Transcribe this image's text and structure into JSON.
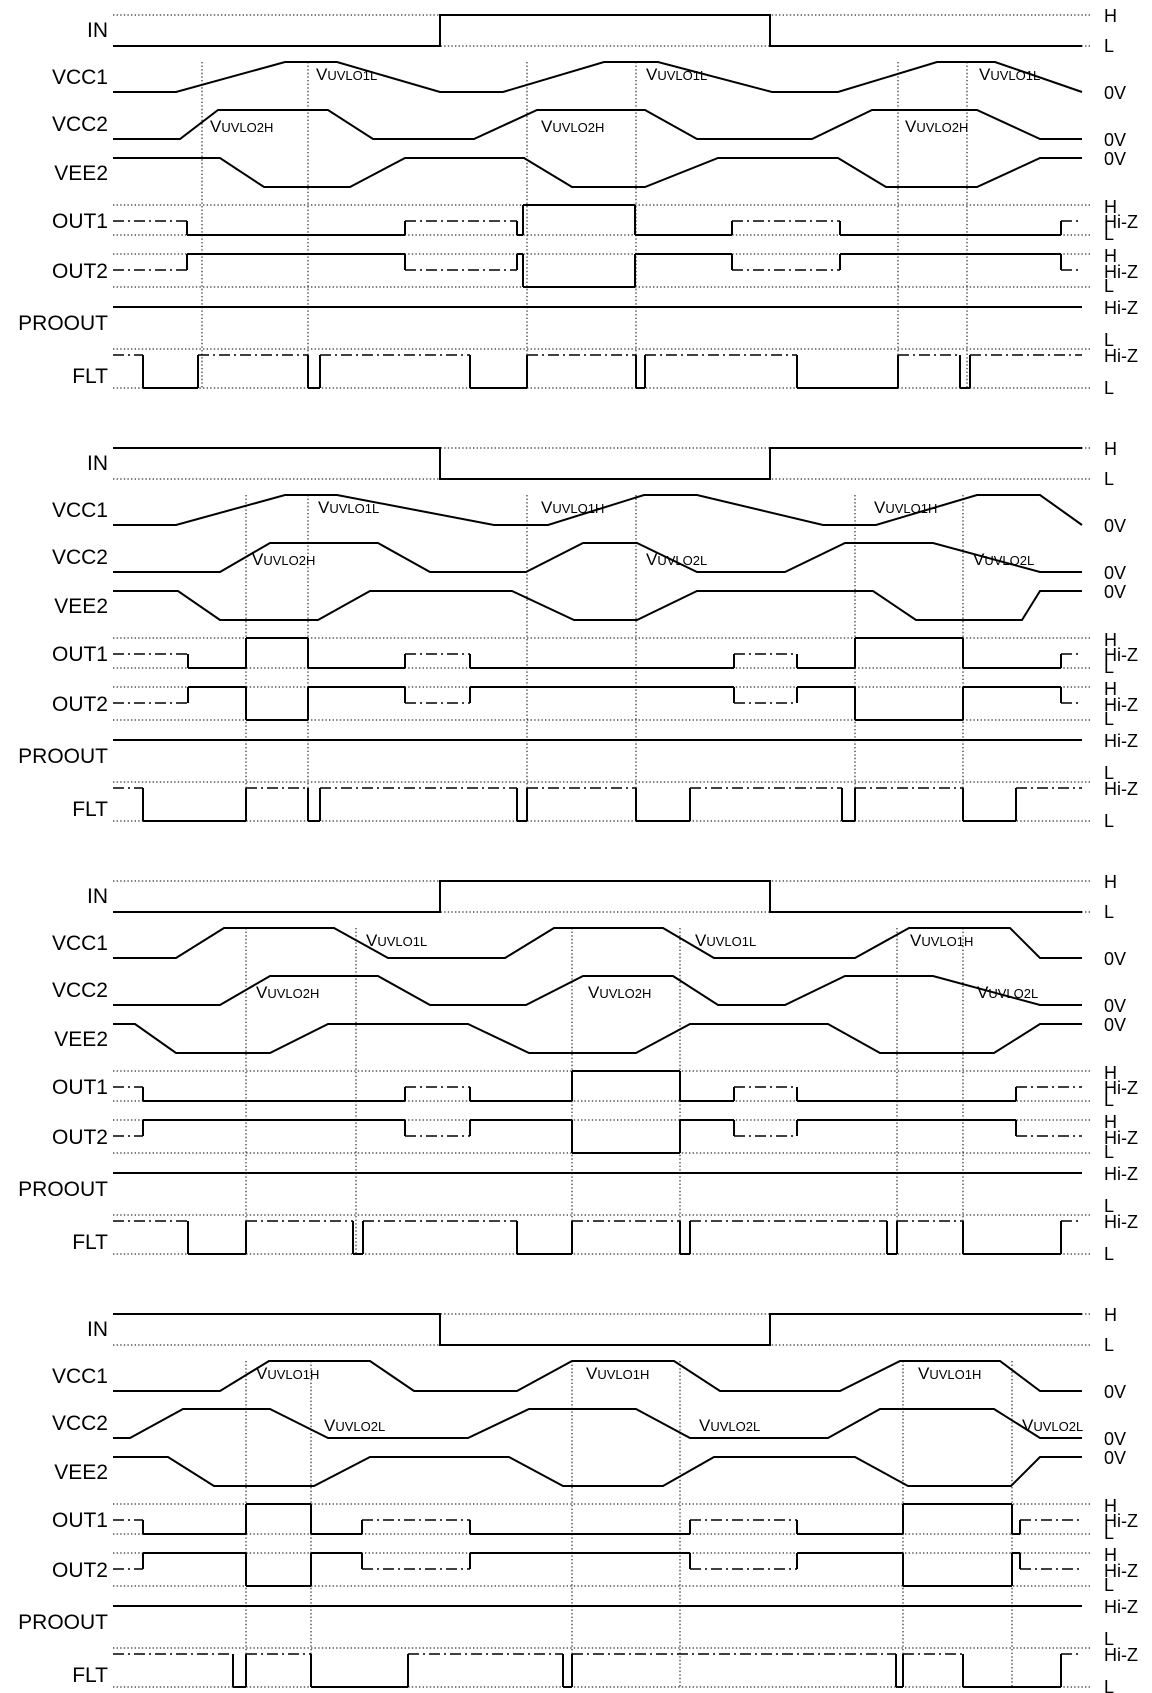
{
  "signal_labels": {
    "in": "IN",
    "vcc1": "VCC1",
    "vcc2": "VCC2",
    "vee2": "VEE2",
    "out1": "OUT1",
    "out2": "OUT2",
    "proout": "PROOUT",
    "flt": "FLT"
  },
  "level_labels": {
    "high": "H",
    "low": "L",
    "zero": "0V",
    "hiz": "Hi-Z"
  },
  "annotation_prefix": "V",
  "threshold_names": {
    "uvlo1l": "UVLO1L",
    "uvlo1h": "UVLO1H",
    "uvlo2h": "UVLO2H",
    "uvlo2l": "UVLO2L"
  },
  "panels": [
    {
      "in_states": [
        "L",
        "H",
        "L"
      ],
      "vcc1_annotations": [
        "uvlo1l",
        "uvlo1l",
        "uvlo1l"
      ],
      "vcc2_annotations": [
        "uvlo2h",
        "uvlo2h",
        "uvlo2h"
      ]
    },
    {
      "in_states": [
        "H",
        "L",
        "H"
      ],
      "vcc1_annotations": [
        "uvlo1l",
        "uvlo1h",
        "uvlo1h"
      ],
      "vcc2_annotations": [
        "uvlo2h",
        "uvlo2l",
        "uvlo2l"
      ]
    },
    {
      "in_states": [
        "L",
        "H",
        "L"
      ],
      "vcc1_annotations": [
        "uvlo1l",
        "uvlo1l",
        "uvlo1h"
      ],
      "vcc2_annotations": [
        "uvlo2h",
        "uvlo2h",
        "uvlo2l"
      ]
    },
    {
      "in_states": [
        "H",
        "L",
        "H"
      ],
      "vcc1_annotations": [
        "uvlo1h",
        "uvlo1h",
        "uvlo1h"
      ],
      "vcc2_annotations": [
        "uvlo2l",
        "uvlo2l",
        "uvlo2l"
      ]
    }
  ]
}
